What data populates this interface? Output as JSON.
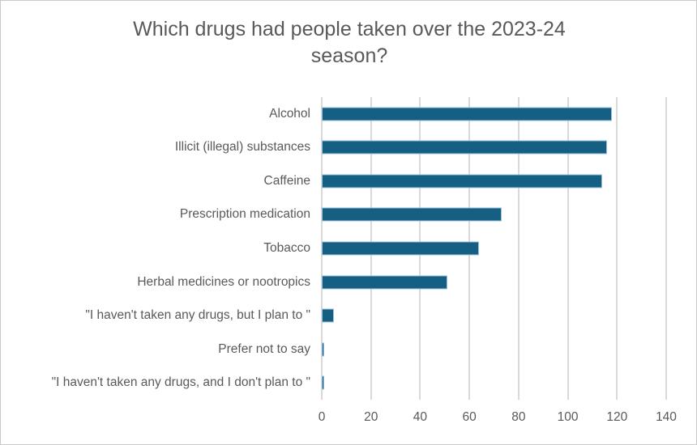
{
  "chart_data": {
    "type": "bar",
    "orientation": "horizontal",
    "title": "Which drugs had people taken over the 2023-24 season?",
    "categories": [
      "Alcohol",
      "Illicit (illegal) substances",
      "Caffeine",
      "Prescription medication",
      "Tobacco",
      "Herbal medicines or nootropics",
      "\"I haven't taken any drugs, but I plan to \"",
      "Prefer not to say",
      "\"I haven't taken any drugs, and I don't plan to \""
    ],
    "values": [
      118,
      116,
      114,
      73,
      64,
      51,
      5,
      1,
      1
    ],
    "xlabel": "",
    "ylabel": "",
    "xlim": [
      0,
      140
    ],
    "x_ticks": [
      0,
      20,
      40,
      60,
      80,
      100,
      120,
      140
    ],
    "grid": true,
    "legend": false,
    "colors": {
      "bar_fill": "#156082",
      "bar_border": "#9DC3DB",
      "gridline": "#D9D9D9",
      "text": "#595959",
      "background": "#FFFFFF",
      "chart_border": "#C9C9C9"
    }
  }
}
